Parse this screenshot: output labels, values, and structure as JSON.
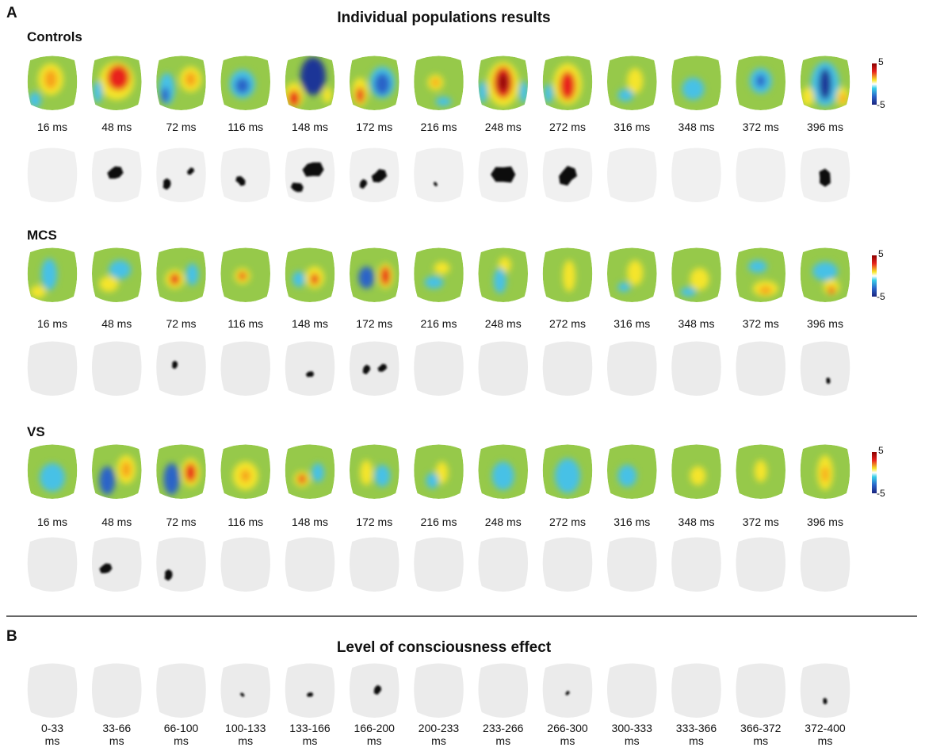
{
  "panel_a": {
    "letter": "A",
    "title": "Individual populations results",
    "groups": [
      {
        "name": "Controls",
        "times": [
          "16 ms",
          "48 ms",
          "72 ms",
          "116 ms",
          "148 ms",
          "172 ms",
          "216 ms",
          "248 ms",
          "272 ms",
          "316 ms",
          "348 ms",
          "372 ms",
          "396 ms"
        ],
        "colorbar": {
          "max": "5",
          "min": "-5"
        }
      },
      {
        "name": "MCS",
        "times": [
          "16 ms",
          "48 ms",
          "72 ms",
          "116 ms",
          "148 ms",
          "172 ms",
          "216 ms",
          "248 ms",
          "272 ms",
          "316 ms",
          "348 ms",
          "372 ms",
          "396 ms"
        ],
        "colorbar": {
          "max": "5",
          "min": "-5"
        }
      },
      {
        "name": "VS",
        "times": [
          "16 ms",
          "48 ms",
          "72 ms",
          "116 ms",
          "148 ms",
          "172 ms",
          "216 ms",
          "248 ms",
          "272 ms",
          "316 ms",
          "348 ms",
          "372 ms",
          "396 ms"
        ],
        "colorbar": {
          "max": "5",
          "min": "-5"
        }
      }
    ]
  },
  "panel_b": {
    "letter": "B",
    "title": "Level of consciousness effect",
    "windows": [
      {
        "range": "0-33",
        "unit": "ms"
      },
      {
        "range": "33-66",
        "unit": "ms"
      },
      {
        "range": "66-100",
        "unit": "ms"
      },
      {
        "range": "100-133",
        "unit": "ms"
      },
      {
        "range": "133-166",
        "unit": "ms"
      },
      {
        "range": "166-200",
        "unit": "ms"
      },
      {
        "range": "200-233",
        "unit": "ms"
      },
      {
        "range": "233-266",
        "unit": "ms"
      },
      {
        "range": "266-300",
        "unit": "ms"
      },
      {
        "range": "300-333",
        "unit": "ms"
      },
      {
        "range": "333-366",
        "unit": "ms"
      },
      {
        "range": "366-372",
        "unit": "ms"
      },
      {
        "range": "372-400",
        "unit": "ms"
      }
    ]
  }
}
